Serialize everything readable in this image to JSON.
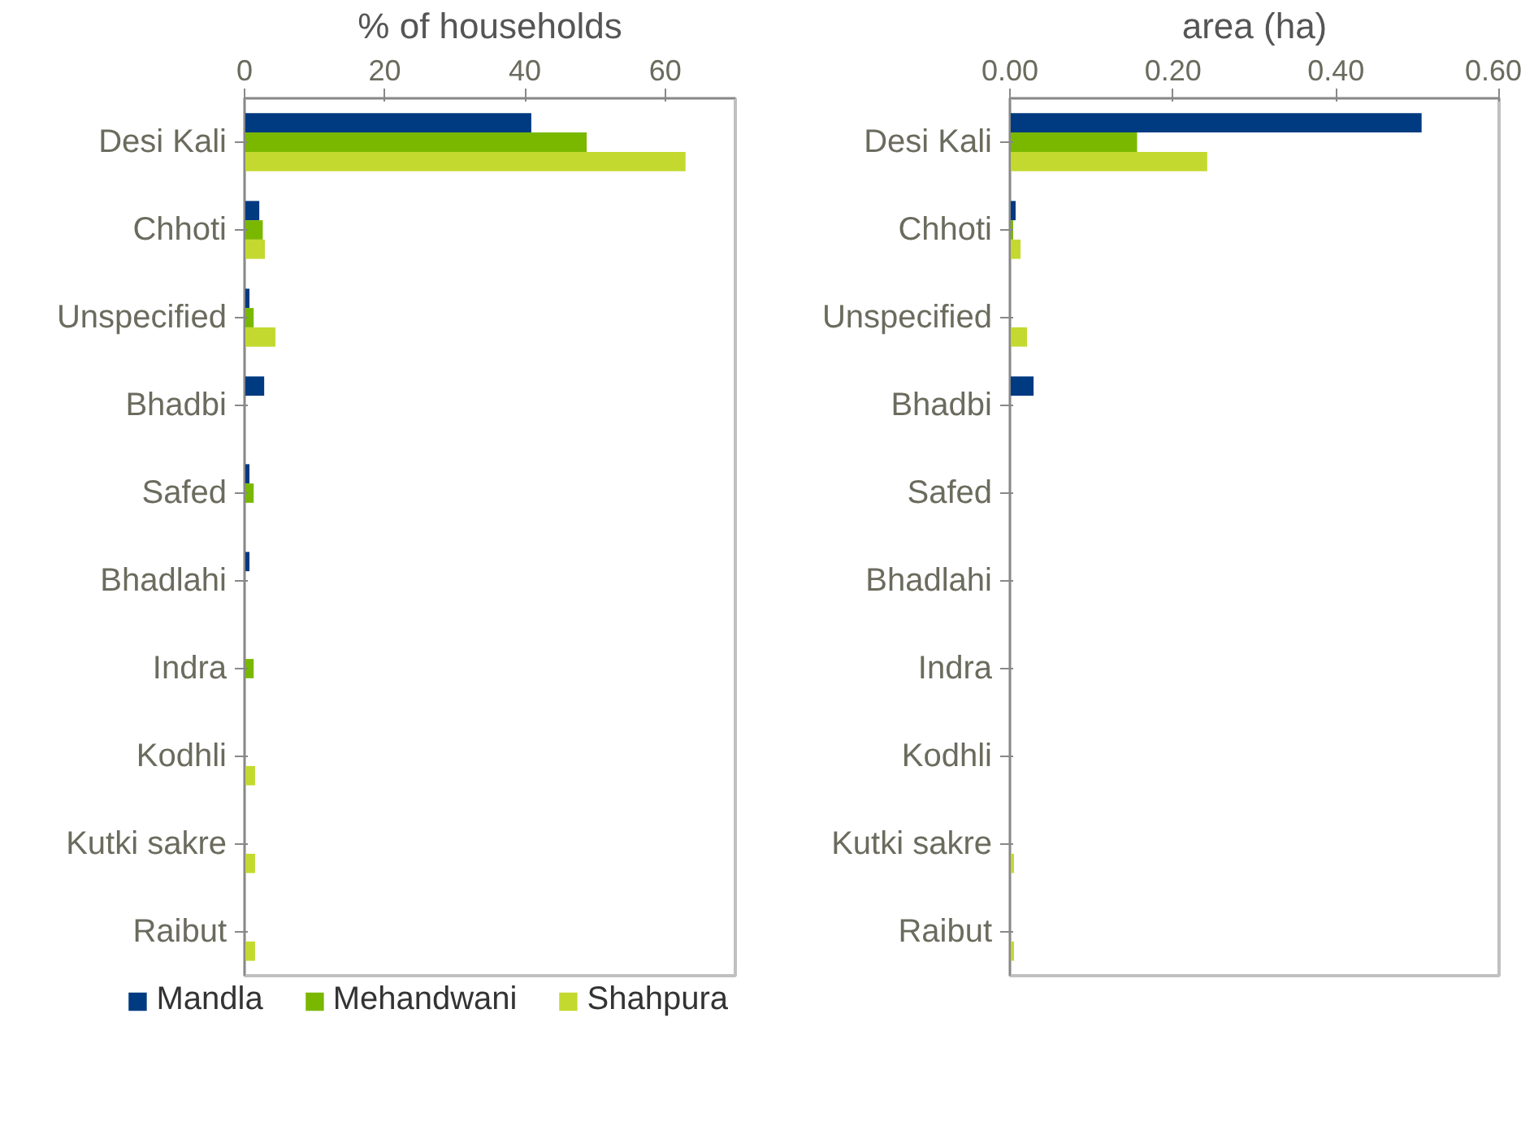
{
  "chart_data": [
    {
      "type": "bar",
      "orientation": "horizontal",
      "xlabel": "% of households",
      "categories": [
        "Desi Kali",
        "Chhoti",
        "Unspecified",
        "Bhadbi",
        "Safed",
        "Bhadlahi",
        "Indra",
        "Kodhli",
        "Kutki sakre",
        "Raibut"
      ],
      "series": [
        {
          "name": "Mandla",
          "color": "#003a80",
          "values": [
            40.9,
            2.1,
            0.7,
            2.8,
            0.7,
            0.7,
            null,
            null,
            null,
            null
          ]
        },
        {
          "name": "Mehandwani",
          "color": "#7ab800",
          "values": [
            48.8,
            2.6,
            1.3,
            null,
            1.3,
            null,
            1.3,
            null,
            null,
            null
          ]
        },
        {
          "name": "Shahpura",
          "color": "#c3d930",
          "values": [
            62.9,
            2.9,
            4.4,
            null,
            null,
            null,
            null,
            1.5,
            1.5,
            1.5
          ]
        }
      ],
      "xlim": [
        0,
        70
      ],
      "xticks": [
        0,
        20,
        40,
        60
      ],
      "legend": "bottom"
    },
    {
      "type": "bar",
      "orientation": "horizontal",
      "xlabel": "area (ha)",
      "categories": [
        "Desi Kali",
        "Chhoti",
        "Unspecified",
        "Bhadbi",
        "Safed",
        "Bhadlahi",
        "Indra",
        "Kodhli",
        "Kutki sakre",
        "Raibut"
      ],
      "series": [
        {
          "color": "#003a80",
          "values": [
            0.505,
            0.007,
            null,
            0.029,
            null,
            null,
            null,
            null,
            null,
            null
          ]
        },
        {
          "color": "#7ab800",
          "values": [
            0.156,
            0.004,
            null,
            null,
            null,
            null,
            null,
            null,
            null,
            null
          ]
        },
        {
          "color": "#c3d930",
          "values": [
            0.242,
            0.013,
            0.021,
            null,
            null,
            null,
            null,
            null,
            0.005,
            0.005
          ]
        }
      ],
      "xlim": [
        0,
        0.6
      ],
      "xticks": [
        {
          "value": 0,
          "label": "0.00"
        },
        {
          "value": 0.2,
          "label": "0.20"
        },
        {
          "value": 0.4,
          "label": "0.40"
        },
        {
          "value": 0.6,
          "label": "0.60"
        }
      ]
    }
  ]
}
